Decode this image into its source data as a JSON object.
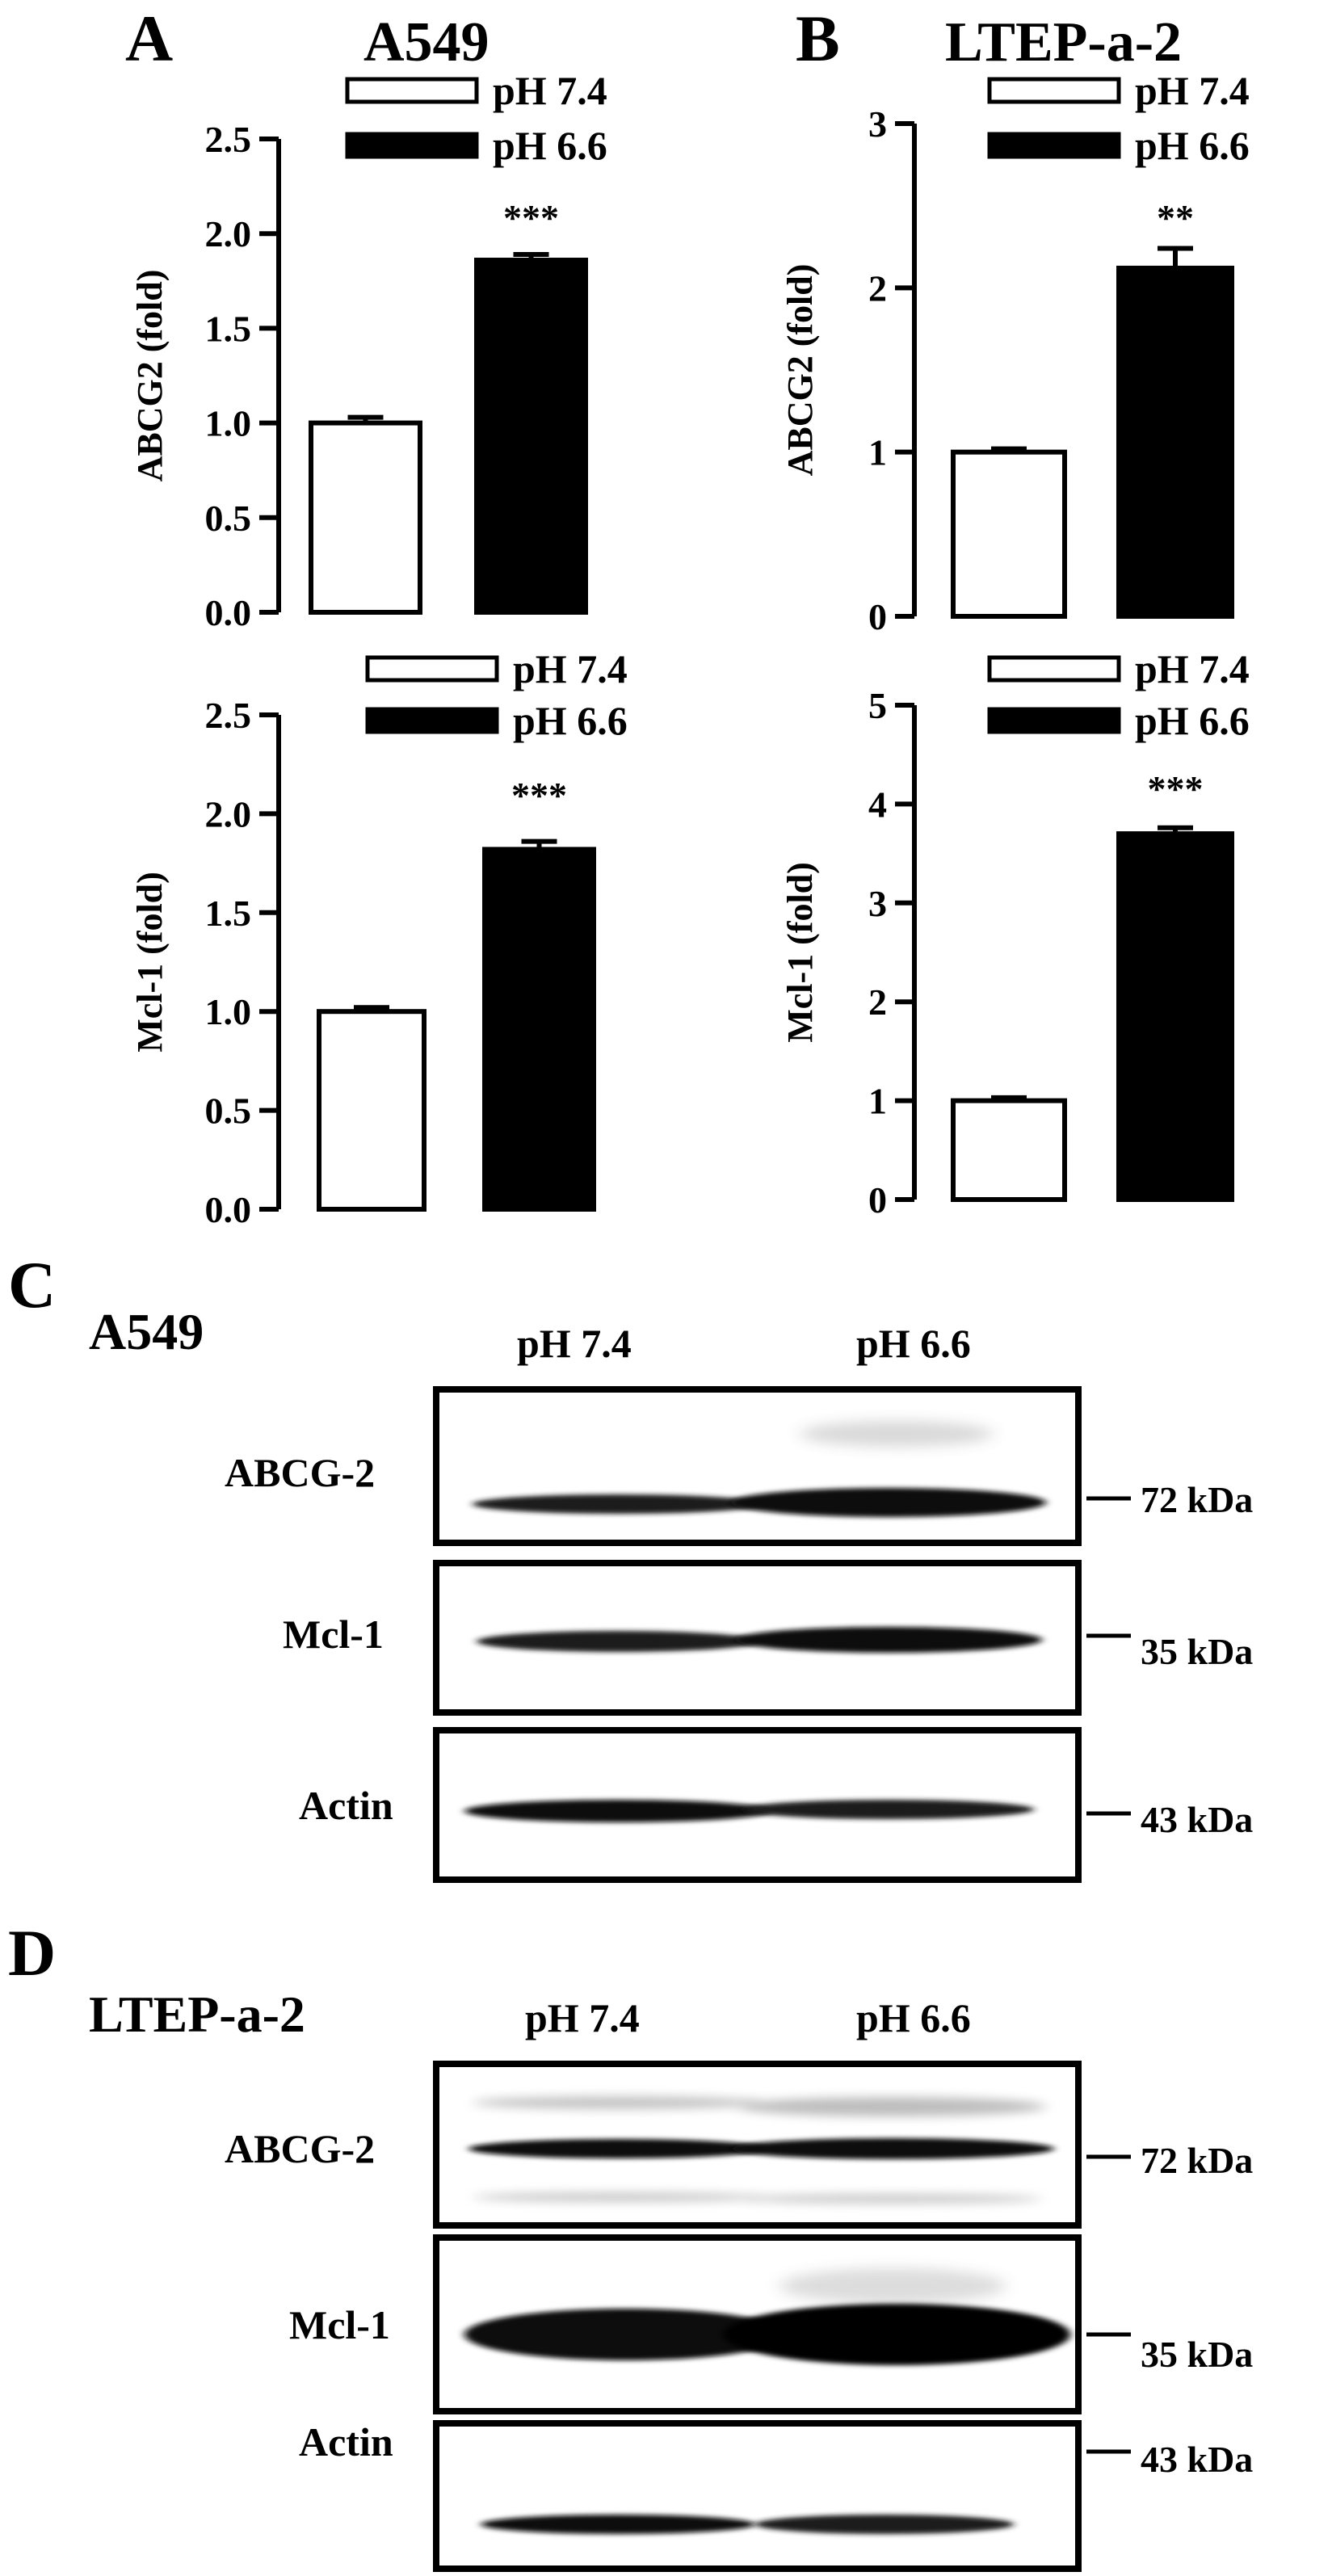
{
  "figure": {
    "panels": {
      "A": {
        "letter": "A",
        "title": "A549"
      },
      "B": {
        "letter": "B",
        "title": "LTEP-a-2"
      },
      "C": {
        "letter": "C",
        "title": "A549"
      },
      "D": {
        "letter": "D",
        "title": "LTEP-a-2"
      }
    },
    "legend": {
      "control": "pH 7.4",
      "acidic": "pH 6.6"
    },
    "colors": {
      "control_fill": "#ffffff",
      "acidic_fill": "#000000",
      "stroke": "#000000"
    }
  },
  "chart_data": [
    {
      "id": "A-top",
      "type": "bar",
      "categories": [
        "pH 7.4",
        "pH 6.6"
      ],
      "values": [
        1.0,
        1.86
      ],
      "errors": [
        0.03,
        0.03
      ],
      "ylabel": "ABCG2 (fold)",
      "ylim": [
        0,
        2.5
      ],
      "yticks": [
        "0.0",
        "0.5",
        "1.0",
        "1.5",
        "2.0",
        "2.5"
      ],
      "significance": "***",
      "legend_position": "top"
    },
    {
      "id": "B-top",
      "type": "bar",
      "categories": [
        "pH 7.4",
        "pH 6.6"
      ],
      "values": [
        1.0,
        2.12
      ],
      "errors": [
        0.02,
        0.12
      ],
      "ylabel": "ABCG2 (fold)",
      "ylim": [
        0,
        3
      ],
      "yticks": [
        "0",
        "1",
        "2",
        "3"
      ],
      "significance": "**",
      "legend_position": "top"
    },
    {
      "id": "A-bottom",
      "type": "bar",
      "categories": [
        "pH 7.4",
        "pH 6.6"
      ],
      "values": [
        1.0,
        1.82
      ],
      "errors": [
        0.02,
        0.04
      ],
      "ylabel": "Mcl-1 (fold)",
      "ylim": [
        0,
        2.5
      ],
      "yticks": [
        "0.0",
        "0.5",
        "1.0",
        "1.5",
        "2.0",
        "2.5"
      ],
      "significance": "***",
      "legend_position": "top"
    },
    {
      "id": "B-bottom",
      "type": "bar",
      "categories": [
        "pH 7.4",
        "pH 6.6"
      ],
      "values": [
        1.0,
        3.7
      ],
      "errors": [
        0.03,
        0.06
      ],
      "ylabel": "Mcl-1 (fold)",
      "ylim": [
        0,
        5
      ],
      "yticks": [
        "0",
        "1",
        "2",
        "3",
        "4",
        "5"
      ],
      "significance": "***",
      "legend_position": "top"
    }
  ],
  "blots": [
    {
      "id": "C",
      "lanes": [
        "pH 7.4",
        "pH 6.6"
      ],
      "rows": [
        {
          "label": "ABCG-2",
          "kda": "72 kDa"
        },
        {
          "label": "Mcl-1",
          "kda": "35 kDa"
        },
        {
          "label": "Actin",
          "kda": "43 kDa"
        }
      ]
    },
    {
      "id": "D",
      "lanes": [
        "pH 7.4",
        "pH 6.6"
      ],
      "rows": [
        {
          "label": "ABCG-2",
          "kda": "72 kDa"
        },
        {
          "label": "Mcl-1",
          "kda": "35 kDa"
        },
        {
          "label": "Actin",
          "kda": "43 kDa"
        }
      ]
    }
  ]
}
